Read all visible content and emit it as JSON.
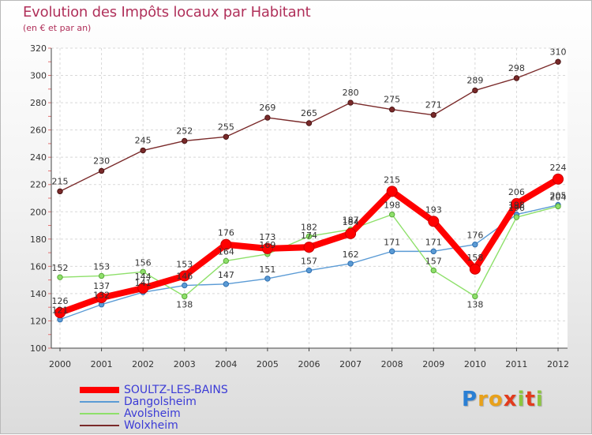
{
  "chart_data": {
    "type": "line",
    "title": "Evolution des Impôts locaux par Habitant",
    "subtitle": "(en € et par an)",
    "xlabel": "",
    "ylabel": "",
    "x": [
      "2000",
      "2001",
      "2002",
      "2003",
      "2004",
      "2005",
      "2006",
      "2007",
      "2008",
      "2009",
      "2010",
      "2011",
      "2012"
    ],
    "ylim": [
      100,
      320
    ],
    "yticks": [
      100,
      120,
      140,
      160,
      180,
      200,
      220,
      240,
      260,
      280,
      300,
      320
    ],
    "grid": true,
    "legend_position": "bottom-left",
    "series": [
      {
        "name": "Wolxheim",
        "color": "#7a2a2a",
        "values": [
          215,
          230,
          245,
          252,
          255,
          269,
          265,
          280,
          275,
          271,
          289,
          298,
          310
        ],
        "labels": [
          "215",
          "230",
          "245",
          "252",
          "255",
          "269",
          "265",
          "280",
          "275",
          "271",
          "289",
          "298",
          "310"
        ]
      },
      {
        "name": "Dangolsheim",
        "color": "#5b9bd5",
        "values": [
          121,
          132,
          141,
          146,
          147,
          151,
          157,
          162,
          171,
          171,
          176,
          198,
          205
        ],
        "labels": [
          "121",
          "132",
          "141",
          "146",
          "147",
          "151",
          "157",
          "162",
          "171",
          "171",
          "176",
          "198",
          "205"
        ]
      },
      {
        "name": "Avolsheim",
        "color": "#8ee06a",
        "values": [
          152,
          153,
          156,
          138,
          164,
          169,
          182,
          187,
          198,
          157,
          138,
          196,
          204
        ],
        "labels": [
          "152",
          "153",
          "156",
          "138",
          "164",
          "169",
          "182",
          "187",
          "198",
          "157",
          "138",
          "196",
          "204"
        ]
      },
      {
        "name": "SOULTZ-LES-BAINS",
        "color": "#ff0000",
        "values": [
          126,
          137,
          144,
          153,
          176,
          173,
          174,
          184,
          215,
          193,
          158,
          206,
          224
        ],
        "labels": [
          "126",
          "137",
          "144",
          "153",
          "176",
          "173",
          "174",
          "184",
          "215",
          "193",
          "158",
          "206",
          "224"
        ]
      }
    ]
  },
  "legend": [
    {
      "name": "SOULTZ-LES-BAINS",
      "color": "#ff0000",
      "thick": true
    },
    {
      "name": "Dangolsheim",
      "color": "#5b9bd5",
      "thick": false
    },
    {
      "name": "Avolsheim",
      "color": "#8ee06a",
      "thick": false
    },
    {
      "name": "Wolxheim",
      "color": "#7a2a2a",
      "thick": false
    }
  ],
  "logo": {
    "letters": [
      "P",
      "r",
      "o",
      "x",
      "i",
      "t",
      "i"
    ],
    "colors": [
      "#2a7fd4",
      "#e8a11b",
      "#e8a11b",
      "#e23b1d",
      "#8cc63f",
      "#e23b1d",
      "#8cc63f"
    ]
  }
}
